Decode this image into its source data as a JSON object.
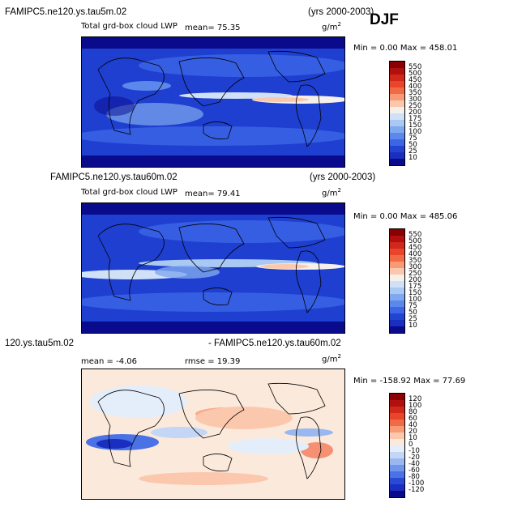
{
  "season": "DJF",
  "units_label": "g/m",
  "units_sup": "2",
  "panels": [
    {
      "case": "FAMIPC5.ne120.ys.tau5m.02",
      "years": "(yrs 2000-2003)",
      "variable": "Total grd-box cloud LWP",
      "stat1": "mean=  75.35",
      "stat2": "",
      "minmax": "Min =    0.00 Max = 458.01",
      "colorbar": {
        "labels": [
          "550",
          "500",
          "450",
          "400",
          "350",
          "300",
          "250",
          "200",
          "175",
          "150",
          "100",
          "75",
          "50",
          "25",
          "10"
        ],
        "colors": [
          "#8b0000",
          "#b01010",
          "#d0281a",
          "#e8452a",
          "#f26a45",
          "#f79a75",
          "#fcc8ad",
          "#f6f0ea",
          "#cfe0f7",
          "#a9c8f2",
          "#7fa9ee",
          "#5b88ea",
          "#3c66e6",
          "#2244d0",
          "#1a2ec0",
          "#0a0a8c"
        ]
      }
    },
    {
      "case": "FAMIPC5.ne120.ys.tau60m.02",
      "years": "(yrs 2000-2003)",
      "variable": "Total grd-box cloud LWP",
      "stat1": "mean=  79.41",
      "stat2": "",
      "minmax": "Min =    0.00 Max = 485.06",
      "colorbar": {
        "labels": [
          "550",
          "500",
          "450",
          "400",
          "350",
          "300",
          "250",
          "200",
          "175",
          "150",
          "100",
          "75",
          "50",
          "25",
          "10"
        ],
        "colors": [
          "#8b0000",
          "#b01010",
          "#d0281a",
          "#e8452a",
          "#f26a45",
          "#f79a75",
          "#fcc8ad",
          "#f6f0ea",
          "#cfe0f7",
          "#a9c8f2",
          "#7fa9ee",
          "#5b88ea",
          "#3c66e6",
          "#2244d0",
          "#1a2ec0",
          "#0a0a8c"
        ]
      }
    },
    {
      "case": "120.ys.tau5m.02",
      "years": "- FAMIPC5.ne120.ys.tau60m.02",
      "variable": "",
      "stat1": "mean =  -4.06",
      "stat2": "rmse =  19.39",
      "minmax": "Min = -158.92 Max =  77.69",
      "colorbar": {
        "labels": [
          "120",
          "100",
          "80",
          "60",
          "40",
          "20",
          "10",
          "0",
          "-10",
          "-20",
          "-40",
          "-60",
          "-80",
          "-100",
          "-120"
        ],
        "colors": [
          "#8b0000",
          "#b01010",
          "#d0281a",
          "#e8452a",
          "#f26a45",
          "#f79a75",
          "#fcc8ad",
          "#fbe9dc",
          "#e4eefa",
          "#c3d6f5",
          "#99b8f0",
          "#6f96ec",
          "#4a72e6",
          "#2a4ad6",
          "#1a2ec0",
          "#0a0a8c"
        ]
      }
    }
  ],
  "chart_data": [
    {
      "type": "heatmap",
      "title": "FAMIPC5.ne120.ys.tau5m.02",
      "subtitle": "Total grd-box cloud LWP",
      "mean": 75.35,
      "min": 0.0,
      "max": 458.01,
      "units": "g/m2",
      "season": "DJF",
      "years": "2000-2003"
    },
    {
      "type": "heatmap",
      "title": "FAMIPC5.ne120.ys.tau60m.02",
      "subtitle": "Total grd-box cloud LWP",
      "mean": 79.41,
      "min": 0.0,
      "max": 485.06,
      "units": "g/m2",
      "season": "DJF",
      "years": "2000-2003"
    },
    {
      "type": "heatmap",
      "title": "120.ys.tau5m.02 - FAMIPC5.ne120.ys.tau60m.02",
      "mean": -4.06,
      "rmse": 19.39,
      "min": -158.92,
      "max": 77.69,
      "units": "g/m2"
    }
  ]
}
